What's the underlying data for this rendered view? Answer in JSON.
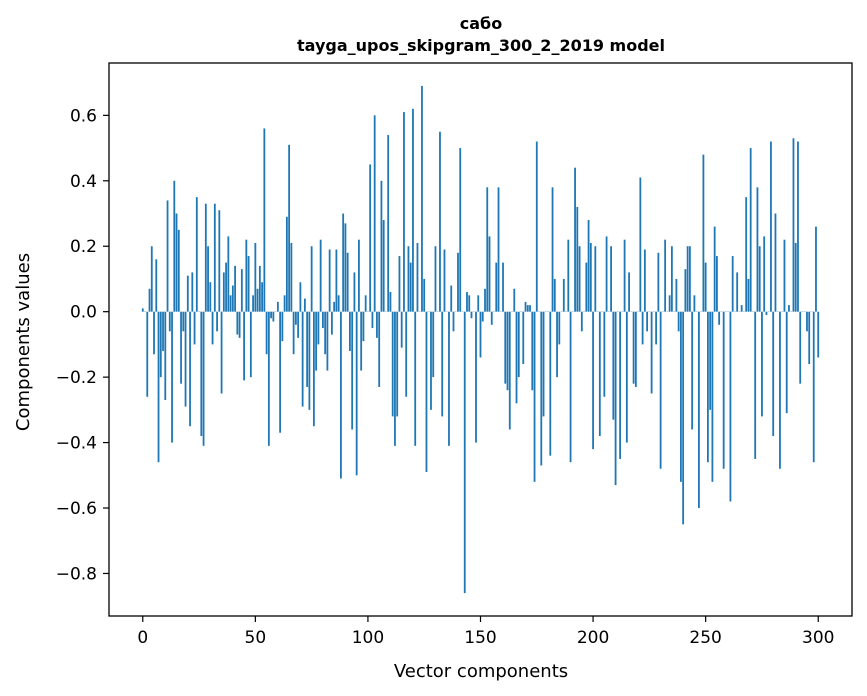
{
  "chart_data": {
    "type": "bar",
    "title": "сабо",
    "subtitle": "tayga_upos_skipgram_300_2_2019 model",
    "xlabel": "Vector components",
    "ylabel": "Components values",
    "xlim": [
      -15,
      315
    ],
    "ylim": [
      -0.93,
      0.76
    ],
    "xticks": [
      0,
      50,
      100,
      150,
      200,
      250,
      300
    ],
    "yticks": [
      -0.8,
      -0.6,
      -0.4,
      -0.2,
      0.0,
      0.2,
      0.4,
      0.6
    ],
    "xtick_labels": [
      "0",
      "50",
      "100",
      "150",
      "200",
      "250",
      "300"
    ],
    "ytick_labels": [
      "−0.8",
      "−0.6",
      "−0.4",
      "−0.2",
      "0.0",
      "0.2",
      "0.4",
      "0.6"
    ],
    "grid": false,
    "bar_color": "#1f77b4",
    "series": [
      {
        "x_start": 0,
        "values": [
          0.01,
          0.0,
          -0.26,
          0.07,
          0.2,
          -0.13,
          0.16,
          -0.46,
          -0.2,
          -0.12,
          -0.27,
          0.34,
          -0.06,
          -0.4,
          0.4,
          0.3,
          0.25,
          -0.22,
          -0.06,
          -0.29,
          0.11,
          -0.35,
          0.12,
          -0.1,
          0.35,
          0.0,
          -0.38,
          -0.41,
          0.33,
          0.2,
          0.09,
          -0.1,
          0.33,
          -0.06,
          0.31,
          -0.25,
          0.12,
          0.15,
          0.23,
          0.05,
          0.08,
          0.14,
          -0.07,
          -0.08,
          0.13,
          -0.21,
          0.22,
          0.17,
          -0.2,
          0.05,
          0.21,
          0.07,
          0.14,
          0.09,
          0.56,
          -0.13,
          -0.41,
          -0.02,
          -0.03,
          0.0,
          0.03,
          -0.37,
          -0.09,
          0.05,
          0.29,
          0.51,
          0.21,
          -0.13,
          -0.04,
          -0.08,
          0.09,
          -0.29,
          0.04,
          -0.23,
          -0.3,
          0.2,
          -0.35,
          -0.18,
          -0.1,
          0.22,
          -0.05,
          -0.13,
          -0.18,
          0.19,
          -0.07,
          0.03,
          0.19,
          0.05,
          -0.51,
          0.3,
          0.27,
          0.18,
          -0.12,
          -0.36,
          0.12,
          -0.5,
          0.22,
          -0.18,
          -0.09,
          0.05,
          0.0,
          0.45,
          -0.05,
          0.6,
          -0.08,
          -0.23,
          0.4,
          0.28,
          0.0,
          0.54,
          0.06,
          -0.32,
          -0.41,
          -0.32,
          0.17,
          -0.11,
          0.61,
          -0.26,
          0.2,
          0.15,
          0.62,
          -0.41,
          0.21,
          0.0,
          0.69,
          0.1,
          -0.49,
          0.0,
          -0.3,
          -0.2,
          0.2,
          0.0,
          0.55,
          -0.32,
          0.19,
          0.0,
          -0.41,
          0.08,
          -0.06,
          0.0,
          0.18,
          0.5,
          0.0,
          -0.86,
          0.06,
          0.05,
          -0.02,
          0.0,
          -0.4,
          0.05,
          -0.14,
          -0.03,
          0.07,
          0.38,
          0.23,
          -0.04,
          0.0,
          0.15,
          0.38,
          0.0,
          0.15,
          -0.22,
          -0.24,
          -0.36,
          0.0,
          0.07,
          -0.28,
          -0.2,
          0.0,
          -0.16,
          0.03,
          0.02,
          0.02,
          -0.24,
          -0.52,
          0.52,
          0.0,
          -0.47,
          -0.32,
          0.0,
          0.0,
          -0.44,
          0.38,
          0.1,
          -0.2,
          -0.1,
          0.0,
          0.1,
          0.0,
          0.22,
          -0.46,
          0.0,
          0.44,
          0.32,
          0.2,
          -0.06,
          0.0,
          0.15,
          0.28,
          0.21,
          -0.42,
          0.2,
          0.0,
          -0.38,
          0.0,
          -0.26,
          0.23,
          0.0,
          0.2,
          -0.33,
          -0.53,
          0.0,
          -0.45,
          0.0,
          0.22,
          -0.4,
          0.12,
          0.0,
          -0.22,
          -0.23,
          0.0,
          0.41,
          -0.1,
          0.19,
          -0.06,
          0.0,
          -0.25,
          0.0,
          -0.1,
          0.18,
          -0.48,
          0.0,
          0.22,
          0.0,
          0.05,
          0.2,
          0.0,
          0.1,
          -0.06,
          -0.52,
          -0.65,
          0.13,
          0.2,
          0.2,
          -0.36,
          0.05,
          0.0,
          -0.6,
          0.0,
          0.48,
          0.15,
          -0.46,
          -0.3,
          -0.52,
          0.26,
          0.17,
          -0.04,
          0.0,
          -0.48,
          0.0,
          0.0,
          -0.58,
          0.17,
          0.0,
          0.12,
          0.0,
          0.02,
          0.0,
          0.35,
          0.1,
          0.5,
          0.0,
          -0.45,
          0.38,
          0.2,
          -0.32,
          0.23,
          -0.01,
          0.0,
          0.52,
          -0.38,
          0.3,
          0.0,
          -0.48,
          0.0,
          0.22,
          -0.31,
          0.02,
          0.0,
          0.53,
          0.21,
          0.52,
          -0.22,
          0.0,
          0.0,
          -0.06,
          -0.16,
          0.0,
          -0.46,
          0.26,
          -0.14
        ]
      }
    ]
  }
}
